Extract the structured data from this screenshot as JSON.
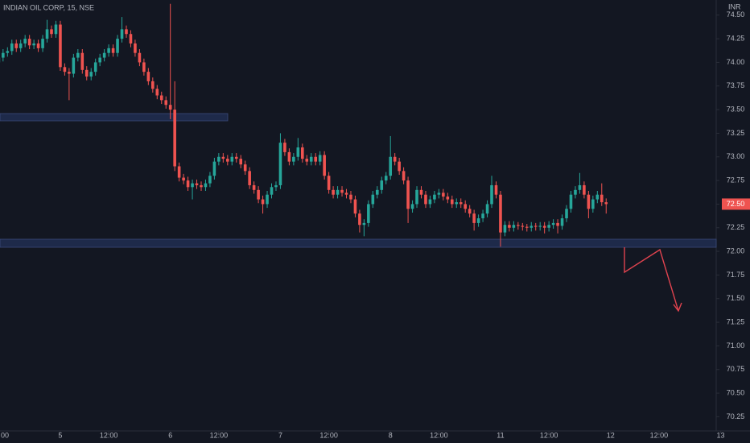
{
  "chart_data": {
    "type": "candlestick",
    "title": "INDIAN OIL CORP, 15, NSE",
    "y_label": "INR",
    "up_color": "#26a69a",
    "down_color": "#ef5350",
    "grid": false,
    "open": [
      74.0,
      74.05,
      74.1,
      74.12,
      74.2,
      74.15,
      74.2,
      74.25,
      74.18,
      74.2,
      74.15,
      74.25,
      74.35,
      74.3,
      74.4,
      73.95,
      73.9,
      73.88,
      74.05,
      74.1,
      73.92,
      73.85,
      73.9,
      74.0,
      74.05,
      74.1,
      74.15,
      74.1,
      74.25,
      74.35,
      74.3,
      74.2,
      74.1,
      74.0,
      73.9,
      73.8,
      73.72,
      73.65,
      73.6,
      73.55,
      73.5,
      72.9,
      72.78,
      72.75,
      72.68,
      72.72,
      72.7,
      72.68,
      72.72,
      72.8,
      72.95,
      73.0,
      72.98,
      72.95,
      73.0,
      72.98,
      72.92,
      72.85,
      72.7,
      72.65,
      72.55,
      72.5,
      72.6,
      72.68,
      72.7,
      73.15,
      73.05,
      72.95,
      73.0,
      73.1,
      72.98,
      72.95,
      73.0,
      72.95,
      73.02,
      72.8,
      72.65,
      72.6,
      72.65,
      72.62,
      72.6,
      72.55,
      72.4,
      72.28,
      72.3,
      72.5,
      72.6,
      72.65,
      72.75,
      72.8,
      73.0,
      72.95,
      72.85,
      72.75,
      72.45,
      72.5,
      72.65,
      72.6,
      72.5,
      72.55,
      72.6,
      72.62,
      72.58,
      72.55,
      72.5,
      72.52,
      72.5,
      72.45,
      72.4,
      72.3,
      72.35,
      72.4,
      72.5,
      72.7,
      72.6,
      72.2,
      72.28,
      72.25,
      72.28,
      72.27,
      72.26,
      72.25,
      72.27,
      72.26,
      72.27,
      72.25,
      72.28,
      72.3,
      72.27,
      72.35,
      72.45,
      72.6,
      72.65,
      72.7,
      72.6,
      72.45,
      72.55,
      72.6,
      72.52
    ],
    "high": [
      74.09,
      74.14,
      74.16,
      74.24,
      74.24,
      74.24,
      74.29,
      74.29,
      74.24,
      74.24,
      74.29,
      74.45,
      74.39,
      74.44,
      74.44,
      73.99,
      73.94,
      74.09,
      74.14,
      74.14,
      73.96,
      73.94,
      74.04,
      74.09,
      74.14,
      74.19,
      74.19,
      74.29,
      74.48,
      74.39,
      74.34,
      74.24,
      74.14,
      74.04,
      73.94,
      73.84,
      73.76,
      73.69,
      73.64,
      74.62,
      73.8,
      72.94,
      72.82,
      72.79,
      72.76,
      72.76,
      72.74,
      72.76,
      72.84,
      72.99,
      73.04,
      73.04,
      73.02,
      73.04,
      73.04,
      73.02,
      72.96,
      72.89,
      72.74,
      72.69,
      72.59,
      72.64,
      72.72,
      72.74,
      73.25,
      73.19,
      73.09,
      73.04,
      73.2,
      73.14,
      73.02,
      73.04,
      73.04,
      73.06,
      73.06,
      72.84,
      72.69,
      72.69,
      72.69,
      72.66,
      72.64,
      72.59,
      72.44,
      72.34,
      72.54,
      72.64,
      72.69,
      72.79,
      72.84,
      73.22,
      73.04,
      72.99,
      72.89,
      72.79,
      72.54,
      72.69,
      72.69,
      72.64,
      72.59,
      72.64,
      72.66,
      72.66,
      72.62,
      72.59,
      72.56,
      72.56,
      72.54,
      72.49,
      72.44,
      72.39,
      72.44,
      72.54,
      72.8,
      72.74,
      72.64,
      72.32,
      72.32,
      72.32,
      72.31,
      72.3,
      72.29,
      72.31,
      72.3,
      72.31,
      72.31,
      72.32,
      72.34,
      72.34,
      72.39,
      72.49,
      72.64,
      72.69,
      72.83,
      72.74,
      72.64,
      72.59,
      72.64,
      72.72,
      72.56
    ],
    "low": [
      73.96,
      74.01,
      74.06,
      74.08,
      74.11,
      74.11,
      74.16,
      74.14,
      74.14,
      74.11,
      74.11,
      74.21,
      74.26,
      74.26,
      73.91,
      73.86,
      73.6,
      73.84,
      74.01,
      73.88,
      73.81,
      73.81,
      73.86,
      73.96,
      74.01,
      74.06,
      74.06,
      74.06,
      74.21,
      74.26,
      74.16,
      74.06,
      73.96,
      73.86,
      73.76,
      73.68,
      73.61,
      73.56,
      73.51,
      73.4,
      72.85,
      72.74,
      72.71,
      72.64,
      72.55,
      72.66,
      72.64,
      72.64,
      72.68,
      72.76,
      72.91,
      72.94,
      72.91,
      72.91,
      72.94,
      72.88,
      72.81,
      72.66,
      72.61,
      72.51,
      72.4,
      72.46,
      72.56,
      72.64,
      72.66,
      73.01,
      72.91,
      72.91,
      72.96,
      72.94,
      72.91,
      72.91,
      72.91,
      72.91,
      72.76,
      72.61,
      72.56,
      72.56,
      72.58,
      72.56,
      72.51,
      72.36,
      72.2,
      72.16,
      72.26,
      72.46,
      72.56,
      72.61,
      72.71,
      72.76,
      72.91,
      72.81,
      72.71,
      72.3,
      72.41,
      72.46,
      72.56,
      72.46,
      72.46,
      72.51,
      72.56,
      72.54,
      72.51,
      72.46,
      72.46,
      72.46,
      72.41,
      72.36,
      72.22,
      72.26,
      72.31,
      72.36,
      72.46,
      72.56,
      72.05,
      72.16,
      72.21,
      72.21,
      72.23,
      72.22,
      72.21,
      72.21,
      72.22,
      72.22,
      72.19,
      72.21,
      72.24,
      72.19,
      72.23,
      72.31,
      72.41,
      72.56,
      72.61,
      72.56,
      72.35,
      72.41,
      72.51,
      72.48,
      72.4
    ],
    "close": [
      74.05,
      74.1,
      74.12,
      74.2,
      74.15,
      74.2,
      74.25,
      74.18,
      74.2,
      74.15,
      74.25,
      74.35,
      74.3,
      74.4,
      73.95,
      73.9,
      73.88,
      74.05,
      74.1,
      73.92,
      73.85,
      73.9,
      74.0,
      74.05,
      74.1,
      74.15,
      74.1,
      74.25,
      74.35,
      74.3,
      74.2,
      74.1,
      74.0,
      73.9,
      73.8,
      73.72,
      73.65,
      73.6,
      73.55,
      73.5,
      72.9,
      72.78,
      72.75,
      72.68,
      72.72,
      72.7,
      72.68,
      72.72,
      72.8,
      72.95,
      73.0,
      72.98,
      72.95,
      73.0,
      72.98,
      72.92,
      72.85,
      72.7,
      72.65,
      72.55,
      72.5,
      72.6,
      72.68,
      72.7,
      73.15,
      73.05,
      72.95,
      73.0,
      73.1,
      72.98,
      72.95,
      73.0,
      72.95,
      73.02,
      72.8,
      72.65,
      72.6,
      72.65,
      72.62,
      72.6,
      72.55,
      72.4,
      72.28,
      72.3,
      72.5,
      72.6,
      72.65,
      72.75,
      72.8,
      73.0,
      72.95,
      72.85,
      72.75,
      72.45,
      72.5,
      72.65,
      72.6,
      72.5,
      72.55,
      72.6,
      72.62,
      72.58,
      72.55,
      72.5,
      72.52,
      72.5,
      72.45,
      72.4,
      72.3,
      72.35,
      72.4,
      72.5,
      72.7,
      72.6,
      72.2,
      72.28,
      72.25,
      72.28,
      72.27,
      72.26,
      72.25,
      72.27,
      72.26,
      72.27,
      72.25,
      72.28,
      72.3,
      72.27,
      72.35,
      72.45,
      72.6,
      72.65,
      72.7,
      72.6,
      72.45,
      72.55,
      72.6,
      72.52,
      72.5
    ],
    "ylim": [
      70.1,
      74.66
    ],
    "yticks": [
      {
        "value": 74.5,
        "label": "74.50"
      },
      74.25,
      {
        "value": 74.0,
        "label": "74.00"
      },
      73.75,
      {
        "value": 73.5,
        "label": "73.50"
      },
      73.25,
      {
        "value": 73.0,
        "label": "73.00"
      },
      72.75,
      {
        "value": 72.5,
        "label": "72.50"
      },
      72.25,
      {
        "value": 72.0,
        "label": "72.00"
      },
      71.75,
      {
        "value": 71.5,
        "label": "71.50"
      },
      71.25,
      {
        "value": 71.0,
        "label": "71.00"
      },
      70.75,
      {
        "value": 70.5,
        "label": "70.50"
      },
      70.25
    ],
    "xlim": [
      0.3,
      163
    ],
    "xticks": [
      {
        "value": 0,
        "label": "00"
      },
      {
        "value": 14,
        "label": "5"
      },
      {
        "value": 25,
        "label": "12:00"
      },
      {
        "value": 39,
        "label": "6"
      },
      {
        "value": 50,
        "label": "12:00"
      },
      {
        "value": 64,
        "label": "7"
      },
      {
        "value": 75,
        "label": "12:00"
      },
      {
        "value": 89,
        "label": "8"
      },
      {
        "value": 100,
        "label": "12:00"
      },
      {
        "value": 114,
        "label": "11"
      },
      {
        "value": 125,
        "label": "12:00"
      },
      {
        "value": 139,
        "label": "12"
      },
      {
        "value": 150,
        "label": "12:00"
      },
      {
        "value": 164,
        "label": "13"
      }
    ],
    "last_price": {
      "value": 72.5,
      "label": "72.50"
    }
  }
}
